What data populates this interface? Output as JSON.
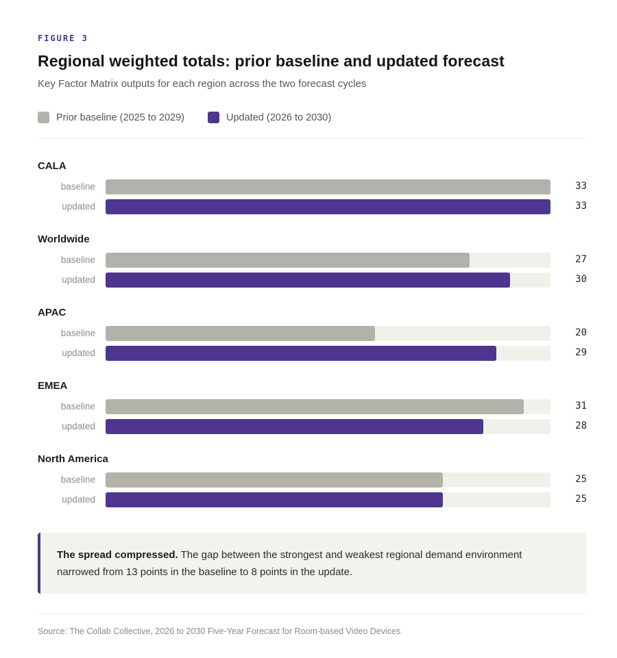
{
  "figure_label": "FIGURE 3",
  "chart_data": {
    "type": "bar",
    "orientation": "horizontal",
    "title": "Regional weighted totals: prior baseline and updated forecast",
    "subtitle": "Key Factor Matrix outputs for each region across the two forecast cycles",
    "xlim": [
      0,
      33
    ],
    "row_labels": {
      "baseline": "baseline",
      "updated": "updated"
    },
    "legend_position": "top-left",
    "series": [
      {
        "key": "baseline",
        "name": "Prior baseline (2025 to 2029)",
        "color": "#b2b2aa"
      },
      {
        "key": "updated",
        "name": "Updated (2026 to 2030)",
        "color": "#4e3590"
      }
    ],
    "categories": [
      {
        "name": "CALA",
        "baseline": 33,
        "updated": 33
      },
      {
        "name": "Worldwide",
        "baseline": 27,
        "updated": 30
      },
      {
        "name": "APAC",
        "baseline": 20,
        "updated": 29
      },
      {
        "name": "EMEA",
        "baseline": 31,
        "updated": 28
      },
      {
        "name": "North America",
        "baseline": 25,
        "updated": 25
      }
    ]
  },
  "callout": {
    "lead": "The spread compressed.",
    "text": " The gap between the strongest and weakest regional demand environment narrowed from 13 points in the baseline to 8 points in the update."
  },
  "source": "Source: The Collab Collective, 2026 to 2030 Five-Year Forecast for Room-based Video Devices",
  "colors": {
    "accent": "#4e3590",
    "baseline": "#b2b2aa",
    "track": "#f1f1ec"
  }
}
